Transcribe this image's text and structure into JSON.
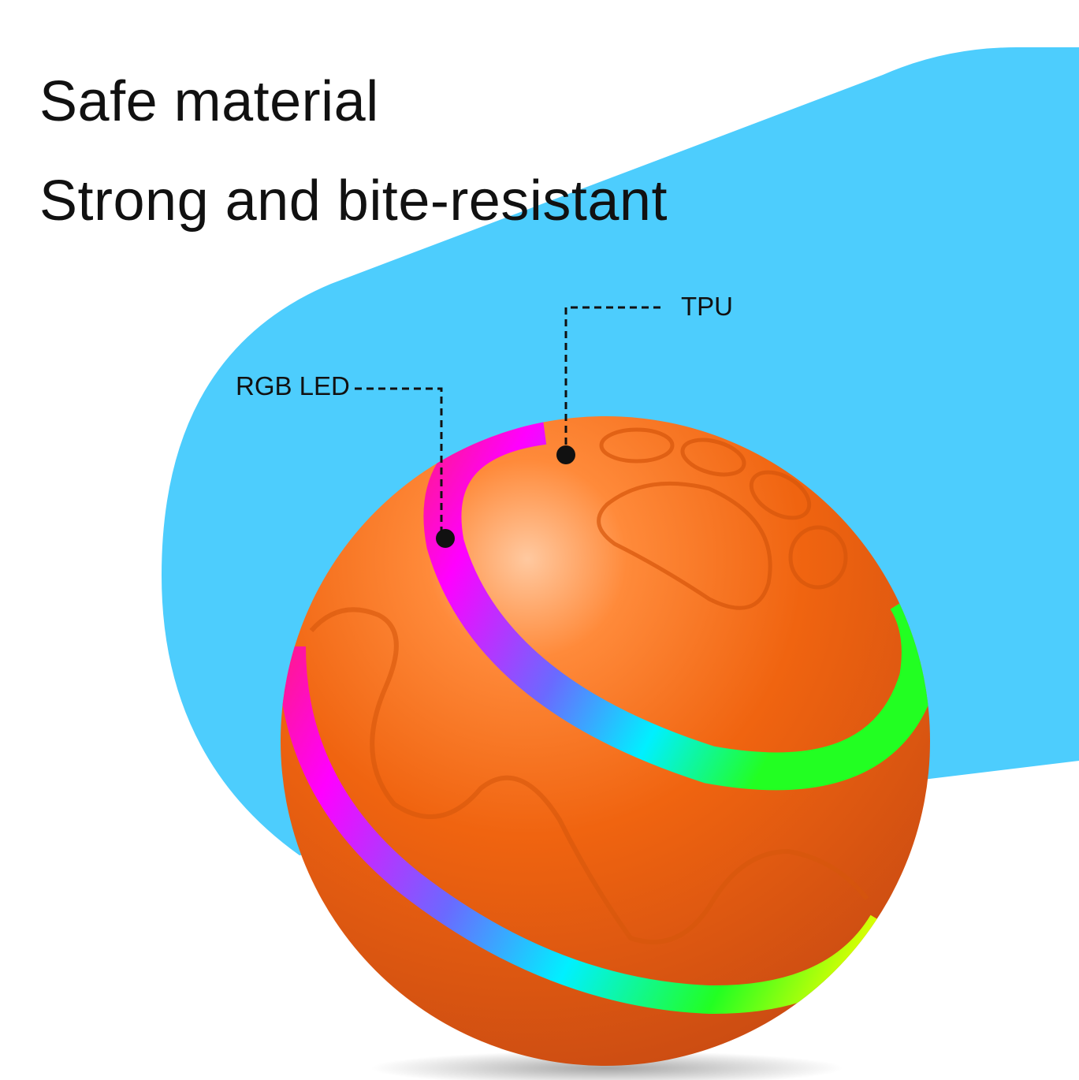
{
  "headline": {
    "line1": "Safe material",
    "line2": "Strong and bite-resistant"
  },
  "callouts": [
    {
      "label": "TPU"
    },
    {
      "label": "RGB LED"
    }
  ],
  "colors": {
    "background_shape": "#4dcdfd",
    "ball": "#f06410",
    "led_gradient": [
      "#ff1a8c",
      "#ff00ff",
      "#6a6aff",
      "#00f0ff",
      "#22ff22",
      "#eaff00"
    ]
  }
}
